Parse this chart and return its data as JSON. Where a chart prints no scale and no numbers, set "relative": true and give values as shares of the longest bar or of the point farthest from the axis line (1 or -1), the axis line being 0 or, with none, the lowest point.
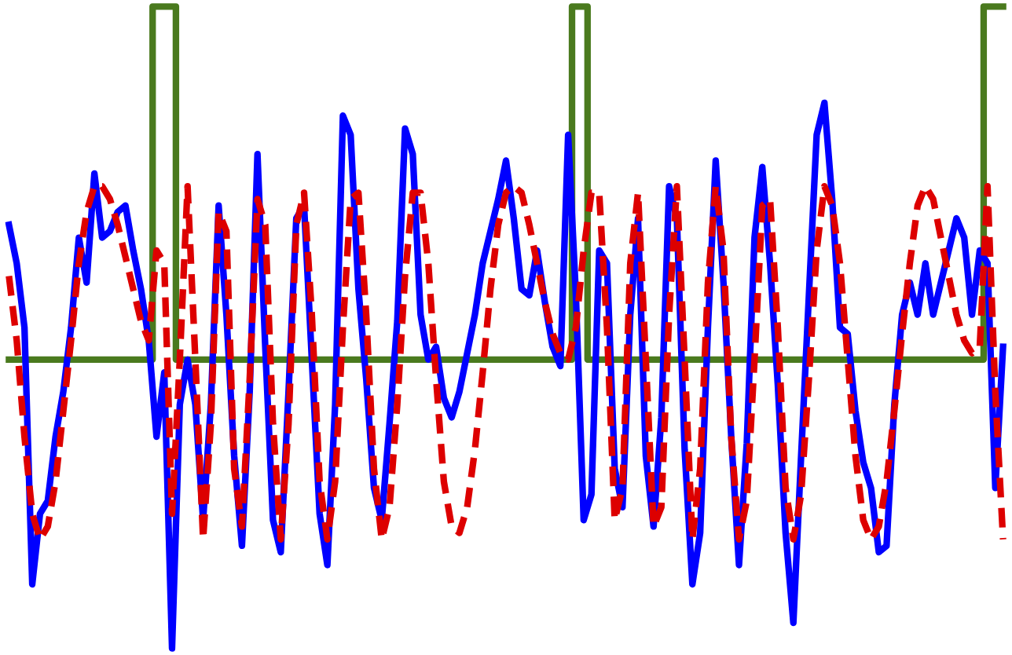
{
  "chart_data": {
    "type": "line",
    "relative": true,
    "tick_labels": false,
    "categories": [
      null,
      null,
      null,
      null,
      null,
      null,
      null,
      null,
      null,
      null,
      null,
      null,
      null,
      null,
      null,
      null,
      null,
      null,
      null,
      null,
      null,
      null,
      null,
      null,
      null,
      null,
      null,
      null,
      null,
      null,
      null,
      null,
      null,
      null,
      null,
      null,
      null,
      null,
      null,
      null,
      null,
      null,
      null,
      null,
      null,
      null,
      null,
      null,
      null,
      null,
      null,
      null,
      null,
      null,
      null,
      null,
      null,
      null,
      null,
      null,
      null,
      null,
      null,
      null,
      null,
      null,
      null,
      null,
      null,
      null,
      null,
      null,
      null,
      null,
      null,
      null,
      null,
      null,
      null,
      null,
      null,
      null,
      null,
      null,
      null,
      null,
      null,
      null,
      null,
      null,
      null,
      null,
      null,
      null,
      null,
      null,
      null,
      null,
      null,
      null,
      null,
      null,
      null,
      null,
      null,
      null,
      null,
      null,
      null,
      null,
      null,
      null,
      null,
      null,
      null,
      null,
      null,
      null,
      null,
      null,
      null,
      null,
      null,
      null,
      null,
      null,
      null,
      null,
      null
    ],
    "series": [
      {
        "type": "step",
        "color": "#4a7a1e",
        "values": [
          0.45,
          0.45,
          0.45,
          0.45,
          0.45,
          0.45,
          0.45,
          0.45,
          0.45,
          0.45,
          0.45,
          0.45,
          0.45,
          0.45,
          0.45,
          0.45,
          0.45,
          0.45,
          0.45,
          1,
          1,
          1,
          0.45,
          0.45,
          0.45,
          0.45,
          0.45,
          0.45,
          0.45,
          0.45,
          0.45,
          0.45,
          0.45,
          0.45,
          0.45,
          0.45,
          0.45,
          0.45,
          0.45,
          0.45,
          0.45,
          0.45,
          0.45,
          0.45,
          0.45,
          0.45,
          0.45,
          0.45,
          0.45,
          0.45,
          0.45,
          0.45,
          0.45,
          0.45,
          0.45,
          0.45,
          0.45,
          0.45,
          0.45,
          0.45,
          0.45,
          0.45,
          0.45,
          0.45,
          0.45,
          0.45,
          0.45,
          0.45,
          0.45,
          0.45,
          0.45,
          0.45,
          0.45,
          1,
          1,
          0.45,
          0.45,
          0.45,
          0.45,
          0.45,
          0.45,
          0.45,
          0.45,
          0.45,
          0.45,
          0.45,
          0.45,
          0.45,
          0.45,
          0.45,
          0.45,
          0.45,
          0.45,
          0.45,
          0.45,
          0.45,
          0.45,
          0.45,
          0.45,
          0.45,
          0.45,
          0.45,
          0.45,
          0.45,
          0.45,
          0.45,
          0.45,
          0.45,
          0.45,
          0.45,
          0.45,
          0.45,
          0.45,
          0.45,
          0.45,
          0.45,
          0.45,
          0.45,
          0.45,
          0.45,
          0.45,
          0.45,
          0.45,
          0.45,
          0.45,
          0.45,
          1,
          1,
          1
        ]
      },
      {
        "color": "#0000ff",
        "values": [
          0.66,
          0.6,
          0.5,
          0.1,
          0.21,
          0.23,
          0.33,
          0.4,
          0.5,
          0.64,
          0.57,
          0.74,
          0.64,
          0.65,
          0.68,
          0.69,
          0.62,
          0.56,
          0.48,
          0.33,
          0.43,
          0,
          0.38,
          0.45,
          0.38,
          0.2,
          0.38,
          0.69,
          0.52,
          0.3,
          0.16,
          0.4,
          0.77,
          0.47,
          0.2,
          0.15,
          0.4,
          0.67,
          0.69,
          0.45,
          0.21,
          0.13,
          0.38,
          0.83,
          0.8,
          0.56,
          0.42,
          0.25,
          0.2,
          0.35,
          0.51,
          0.81,
          0.77,
          0.52,
          0.45,
          0.47,
          0.39,
          0.36,
          0.4,
          0.46,
          0.52,
          0.6,
          0.65,
          0.7,
          0.76,
          0.67,
          0.56,
          0.55,
          0.62,
          0.54,
          0.47,
          0.44,
          0.8,
          0.55,
          0.2,
          0.24,
          0.62,
          0.6,
          0.28,
          0.22,
          0.52,
          0.67,
          0.3,
          0.19,
          0.36,
          0.72,
          0.67,
          0.31,
          0.1,
          0.18,
          0.5,
          0.76,
          0.57,
          0.33,
          0.13,
          0.32,
          0.64,
          0.75,
          0.6,
          0.41,
          0.18,
          0.04,
          0.3,
          0.55,
          0.8,
          0.85,
          0.7,
          0.5,
          0.49,
          0.37,
          0.29,
          0.25,
          0.15,
          0.16,
          0.38,
          0.52,
          0.57,
          0.52,
          0.6,
          0.52,
          0.57,
          0.62,
          0.67,
          0.64,
          0.52,
          0.62,
          0.6,
          0.25,
          0.47
        ]
      },
      {
        "color": "#dd0000",
        "line_style": "dashed",
        "values": [
          0.58,
          0.48,
          0.33,
          0.21,
          0.17,
          0.19,
          0.26,
          0.37,
          0.48,
          0.6,
          0.68,
          0.72,
          0.72,
          0.7,
          0.66,
          0.61,
          0.56,
          0.51,
          0.48,
          0.62,
          0.6,
          0.21,
          0.45,
          0.72,
          0.45,
          0.17,
          0.35,
          0.68,
          0.65,
          0.28,
          0.19,
          0.42,
          0.7,
          0.66,
          0.35,
          0.17,
          0.35,
          0.66,
          0.71,
          0.52,
          0.26,
          0.17,
          0.26,
          0.5,
          0.7,
          0.71,
          0.52,
          0.28,
          0.17,
          0.22,
          0.38,
          0.58,
          0.71,
          0.71,
          0.6,
          0.42,
          0.26,
          0.19,
          0.18,
          0.22,
          0.31,
          0.43,
          0.56,
          0.66,
          0.71,
          0.72,
          0.71,
          0.66,
          0.6,
          0.54,
          0.49,
          0.46,
          0.45,
          0.5,
          0.62,
          0.71,
          0.71,
          0.5,
          0.2,
          0.25,
          0.6,
          0.71,
          0.45,
          0.19,
          0.22,
          0.52,
          0.72,
          0.45,
          0.17,
          0.28,
          0.57,
          0.72,
          0.62,
          0.33,
          0.17,
          0.23,
          0.45,
          0.69,
          0.7,
          0.5,
          0.25,
          0.17,
          0.24,
          0.42,
          0.62,
          0.72,
          0.69,
          0.6,
          0.45,
          0.3,
          0.2,
          0.17,
          0.19,
          0.26,
          0.37,
          0.49,
          0.6,
          0.69,
          0.72,
          0.7,
          0.64,
          0.58,
          0.52,
          0.48,
          0.46,
          0.47,
          0.72,
          0.4,
          0.17
        ]
      }
    ]
  }
}
